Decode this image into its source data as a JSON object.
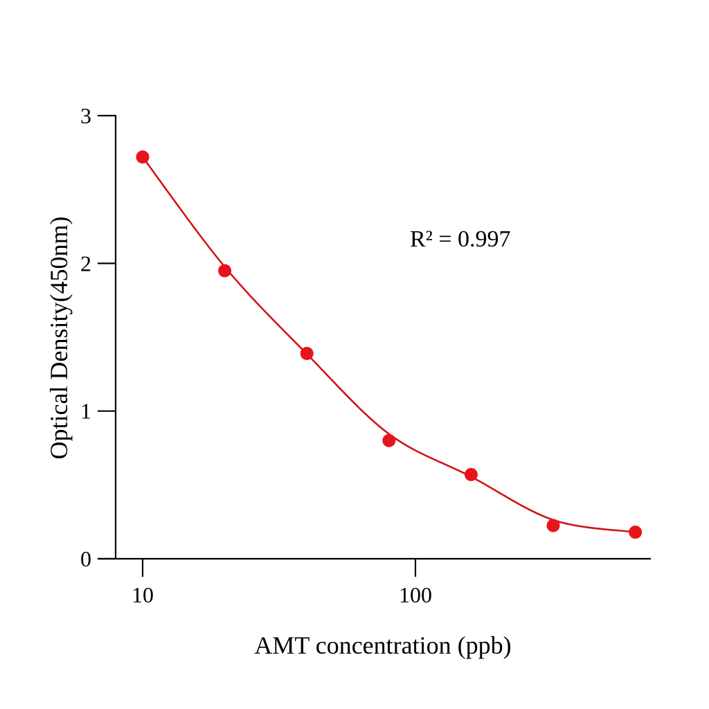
{
  "chart_data": {
    "type": "scatter",
    "title": "",
    "xlabel": "AMT concentration (ppb)",
    "ylabel": "Optical Density(450nm)",
    "xscale": "log",
    "xlim": [
      8,
      700
    ],
    "ylim": [
      0,
      3
    ],
    "xticks": [
      10,
      100
    ],
    "xtick_labels": [
      "10",
      "100"
    ],
    "yticks": [
      0,
      1,
      2,
      3
    ],
    "ytick_labels": [
      "0",
      "1",
      "2",
      "3"
    ],
    "grid": false,
    "annotation": "R² = 0.997",
    "point_color": "#e8141b",
    "curve_color": "#d01418",
    "series": [
      {
        "x": [
          10,
          20,
          40,
          80,
          160,
          320,
          640
        ],
        "y": [
          2.72,
          1.95,
          1.39,
          0.8,
          0.57,
          0.225,
          0.18
        ]
      }
    ],
    "fit_curve": "smooth fitted curve through points"
  }
}
